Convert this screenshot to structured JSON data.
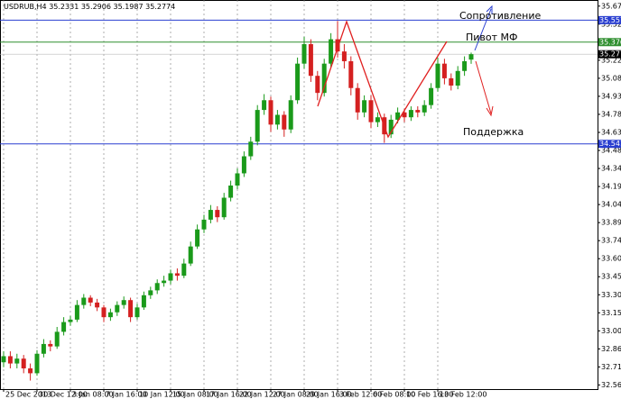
{
  "chart_data": {
    "type": "candlestick",
    "title": "USDRUB,H4",
    "categories": [
      "25 Dec 2013",
      null,
      null,
      null,
      null,
      "30 Dec 12:00",
      null,
      null,
      null,
      null,
      "3 Jan 08:00",
      null,
      null,
      null,
      null,
      "7 Jan 16:00",
      null,
      null,
      null,
      null,
      "10 Jan 12:00",
      null,
      null,
      null,
      null,
      "15 Jan 08:00",
      null,
      null,
      null,
      null,
      "17 Jan 16:00",
      null,
      null,
      null,
      null,
      "22 Jan 12:00",
      null,
      null,
      null,
      null,
      "27 Jan 08:00",
      null,
      null,
      null,
      null,
      "29 Jan 16:00",
      null,
      null,
      null,
      null,
      "3 Feb 12:00",
      null,
      null,
      null,
      null,
      "6 Feb 08:00",
      null,
      null,
      null,
      null,
      "10 Feb 16:00",
      null,
      null,
      null,
      null,
      "13 Feb 12:00",
      null,
      null,
      null,
      null,
      null
    ],
    "open": [
      32.75,
      32.8,
      32.74,
      32.78,
      32.7,
      32.66,
      32.82,
      32.9,
      32.88,
      33.0,
      33.08,
      33.1,
      33.22,
      33.28,
      33.24,
      33.2,
      33.12,
      33.16,
      33.22,
      33.26,
      33.12,
      33.2,
      33.3,
      33.34,
      33.4,
      33.42,
      33.48,
      33.46,
      33.56,
      33.7,
      33.84,
      33.92,
      34.0,
      33.94,
      34.1,
      34.2,
      34.3,
      34.44,
      34.56,
      34.82,
      34.9,
      34.7,
      34.78,
      34.66,
      34.9,
      35.2,
      35.36,
      35.1,
      34.96,
      35.2,
      35.4,
      35.3,
      35.22,
      35.0,
      34.8,
      34.9,
      34.72,
      34.76,
      34.62,
      34.74,
      34.8,
      34.76,
      34.82,
      34.8,
      34.86,
      35.0,
      35.2,
      35.08,
      35.02,
      35.14,
      35.2331
    ],
    "high": [
      32.84,
      32.84,
      32.82,
      32.81,
      32.74,
      32.85,
      32.94,
      32.93,
      33.04,
      33.12,
      33.13,
      33.26,
      33.31,
      33.3,
      33.27,
      33.22,
      33.19,
      33.25,
      33.29,
      33.28,
      33.23,
      33.33,
      33.37,
      33.43,
      33.46,
      33.51,
      33.52,
      33.6,
      33.74,
      33.88,
      33.96,
      34.04,
      34.03,
      34.14,
      34.24,
      34.34,
      34.48,
      34.6,
      34.86,
      34.95,
      34.93,
      34.82,
      34.81,
      34.94,
      35.25,
      35.42,
      35.4,
      35.14,
      35.24,
      35.45,
      35.55,
      35.36,
      35.26,
      35.04,
      34.94,
      34.94,
      34.8,
      34.79,
      34.78,
      34.84,
      34.83,
      34.85,
      34.85,
      34.9,
      35.04,
      35.25,
      35.24,
      35.12,
      35.18,
      35.26,
      35.2906
    ],
    "low": [
      32.71,
      32.7,
      32.7,
      32.66,
      32.6,
      32.64,
      32.79,
      32.84,
      32.86,
      32.97,
      33.05,
      33.08,
      33.19,
      33.21,
      33.17,
      33.08,
      33.09,
      33.13,
      33.19,
      33.08,
      33.1,
      33.18,
      33.27,
      33.31,
      33.37,
      33.39,
      33.42,
      33.44,
      33.54,
      33.68,
      33.81,
      33.89,
      33.9,
      33.92,
      34.07,
      34.17,
      34.27,
      34.41,
      34.53,
      34.78,
      34.64,
      34.66,
      34.6,
      34.63,
      34.87,
      35.16,
      35.05,
      34.9,
      34.93,
      35.17,
      35.25,
      35.16,
      34.94,
      34.74,
      34.76,
      34.67,
      34.68,
      34.55,
      34.59,
      34.71,
      34.72,
      34.73,
      34.76,
      34.77,
      34.83,
      34.97,
      35.03,
      34.98,
      34.99,
      35.1,
      35.1987
    ],
    "close": [
      32.8,
      32.74,
      32.78,
      32.7,
      32.66,
      32.82,
      32.9,
      32.88,
      33.0,
      33.08,
      33.1,
      33.22,
      33.28,
      33.24,
      33.2,
      33.12,
      33.16,
      33.22,
      33.26,
      33.12,
      33.2,
      33.3,
      33.34,
      33.4,
      33.42,
      33.48,
      33.46,
      33.56,
      33.7,
      33.84,
      33.92,
      34.0,
      33.94,
      34.1,
      34.2,
      34.3,
      34.44,
      34.56,
      34.82,
      34.9,
      34.7,
      34.78,
      34.66,
      34.9,
      35.2,
      35.36,
      35.1,
      34.96,
      35.2,
      35.4,
      35.3,
      35.22,
      35.0,
      34.8,
      34.9,
      34.72,
      34.76,
      34.62,
      34.74,
      34.8,
      34.76,
      34.82,
      34.8,
      34.86,
      35.0,
      35.2,
      35.08,
      35.02,
      35.14,
      35.22,
      35.2774
    ],
    "up_color": "#1a9a1a",
    "down_color": "#d42020",
    "ylim": [
      32.53,
      35.7
    ],
    "yticks": [
      {
        "value": 35.672,
        "label": "35.6720"
      },
      {
        "value": 35.524,
        "label": "35.5240"
      },
      {
        "value": 35.376,
        "label": "35.3760"
      },
      {
        "value": 35.228,
        "label": "35.2280"
      },
      {
        "value": 35.08,
        "label": "35.0800"
      },
      {
        "value": 34.932,
        "label": "34.9320"
      },
      {
        "value": 34.784,
        "label": "34.7840"
      },
      {
        "value": 34.636,
        "label": "34.6360"
      },
      {
        "value": 34.488,
        "label": "34.4880"
      },
      {
        "value": 34.34,
        "label": "34.3400"
      },
      {
        "value": 34.192,
        "label": "34.1920"
      },
      {
        "value": 34.044,
        "label": "34.0440"
      },
      {
        "value": 33.896,
        "label": "33.8960"
      },
      {
        "value": 33.748,
        "label": "33.7480"
      },
      {
        "value": 33.6,
        "label": "33.6000"
      },
      {
        "value": 33.452,
        "label": "33.4520"
      },
      {
        "value": 33.304,
        "label": "33.3040"
      },
      {
        "value": 33.156,
        "label": "33.1560"
      },
      {
        "value": 33.008,
        "label": "33.0080"
      },
      {
        "value": 32.86,
        "label": "32.8600"
      },
      {
        "value": 32.712,
        "label": "32.7120"
      },
      {
        "value": 32.564,
        "label": "32.5640"
      }
    ],
    "levels": [
      {
        "value": 35.557,
        "label": "35.5570",
        "color": "#2a3fd0"
      },
      {
        "value": 35.3766,
        "label": "35.3766",
        "color": "#2f8f2f"
      },
      {
        "value": 34.5418,
        "label": "34.5418",
        "color": "#2a3fd0"
      }
    ],
    "current_price": {
      "value": 35.2774,
      "label": "35.2774"
    },
    "annotations": [
      "Сопротивление",
      "Пивот МФ",
      "Поддержка"
    ]
  }
}
